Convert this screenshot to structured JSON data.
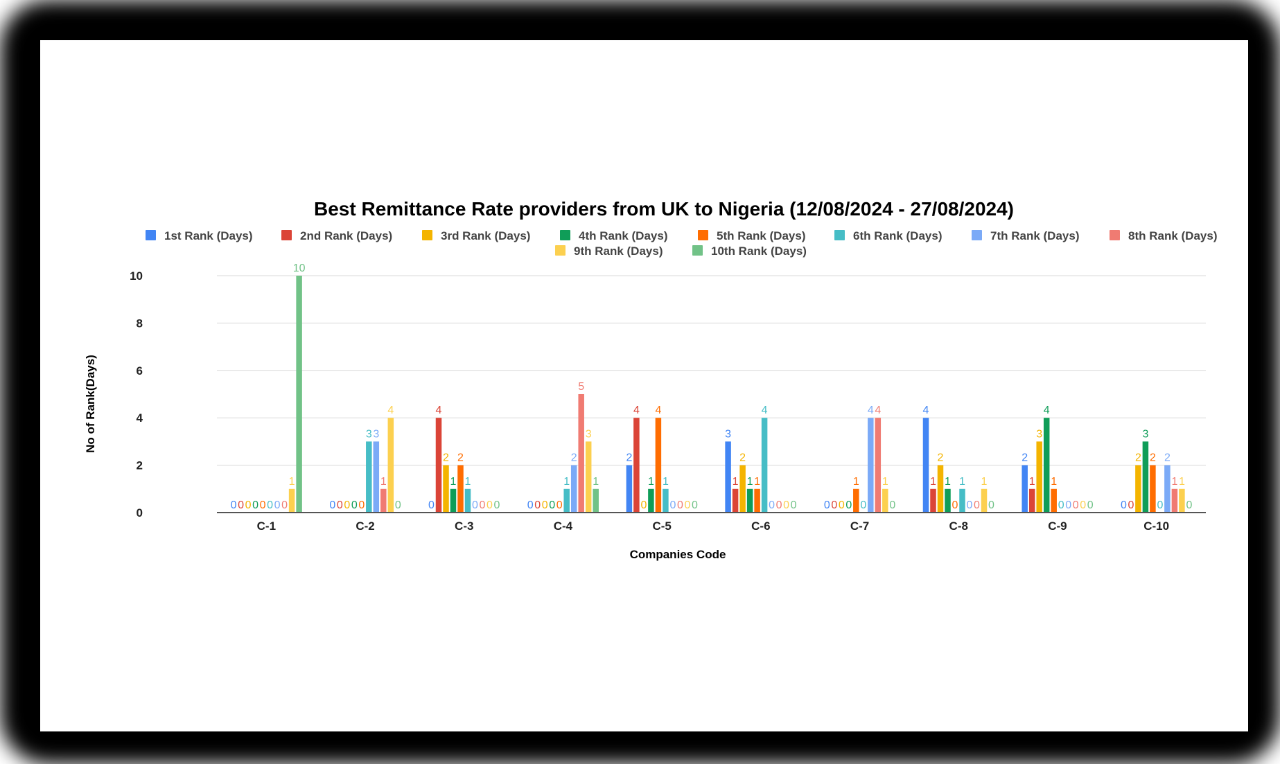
{
  "chart_data": {
    "type": "bar",
    "title": "Best  Remittance Rate providers from UK to Nigeria (12/08/2024 - 27/08/2024)",
    "xlabel": "Companies Code",
    "ylabel": "No of Rank(Days)",
    "ylim": [
      0,
      10
    ],
    "yticks": [
      "0",
      "2",
      "4",
      "6",
      "8",
      "10"
    ],
    "grid": true,
    "legend_position": "top",
    "categories": [
      "C-1",
      "C-2",
      "C-3",
      "C-4",
      "C-5",
      "C-6",
      "C-7",
      "C-8",
      "C-9",
      "C-10"
    ],
    "series": [
      {
        "name": "1st Rank (Days)",
        "color": "#4285F4",
        "values": [
          0,
          0,
          0,
          0,
          2,
          3,
          0,
          4,
          2,
          0
        ]
      },
      {
        "name": "2nd Rank (Days)",
        "color": "#DB4437",
        "values": [
          0,
          0,
          4,
          0,
          4,
          1,
          0,
          1,
          1,
          0
        ]
      },
      {
        "name": "3rd Rank (Days)",
        "color": "#F4B400",
        "values": [
          0,
          0,
          2,
          0,
          0,
          2,
          0,
          2,
          3,
          2
        ]
      },
      {
        "name": "4th Rank (Days)",
        "color": "#0F9D58",
        "values": [
          0,
          0,
          1,
          0,
          1,
          1,
          0,
          1,
          4,
          3
        ]
      },
      {
        "name": "5th Rank (Days)",
        "color": "#FF6D01",
        "values": [
          0,
          0,
          2,
          0,
          4,
          1,
          1,
          0,
          1,
          2
        ]
      },
      {
        "name": "6th Rank (Days)",
        "color": "#46BDC6",
        "values": [
          0,
          3,
          1,
          1,
          1,
          4,
          0,
          1,
          0,
          0
        ]
      },
      {
        "name": "7th Rank (Days)",
        "color": "#7BAAF7",
        "values": [
          0,
          3,
          0,
          2,
          0,
          0,
          4,
          0,
          0,
          2
        ]
      },
      {
        "name": "8th Rank (Days)",
        "color": "#F07B72",
        "values": [
          0,
          1,
          0,
          5,
          0,
          0,
          4,
          0,
          0,
          1
        ]
      },
      {
        "name": "9th Rank (Days)",
        "color": "#FCD04F",
        "values": [
          1,
          4,
          0,
          3,
          0,
          0,
          1,
          1,
          0,
          1
        ]
      },
      {
        "name": "10th Rank (Days)",
        "color": "#71C287",
        "values": [
          10,
          0,
          0,
          1,
          0,
          0,
          0,
          0,
          0,
          0
        ]
      }
    ]
  }
}
